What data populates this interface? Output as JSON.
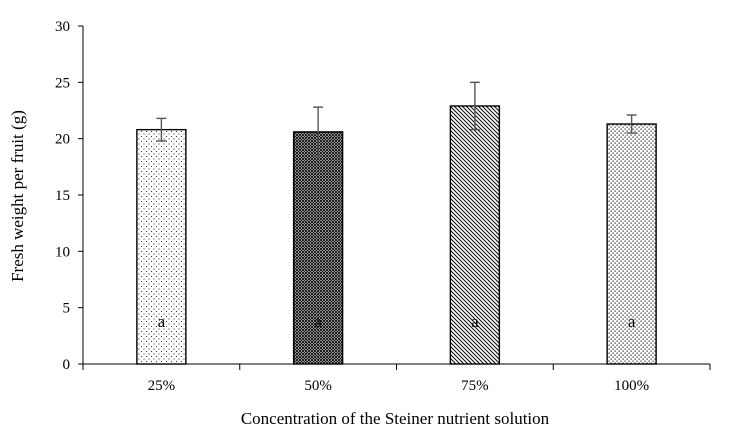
{
  "chart_data": {
    "type": "bar",
    "categories": [
      "25%",
      "50%",
      "75%",
      "100%"
    ],
    "values": [
      20.8,
      20.6,
      22.9,
      21.3
    ],
    "errors": [
      1.0,
      2.2,
      2.1,
      0.8
    ],
    "significance_letters": [
      "a",
      "a",
      "a",
      "a"
    ],
    "patterns": [
      "dots-sparse",
      "crosshatch-dense",
      "diagonal-lines",
      "dots-dense"
    ],
    "title": "",
    "xlabel": "Concentration of the Steiner nutrient solution",
    "ylabel": "Fresh weight per fruit (g)",
    "ylim": [
      0,
      30
    ],
    "yticks": [
      "0",
      "5",
      "10",
      "15",
      "20",
      "25",
      "30"
    ],
    "grid": false,
    "legend": "none",
    "bar_color": "#ffffff",
    "edge_color": "#000000",
    "error_color": "#555555"
  }
}
